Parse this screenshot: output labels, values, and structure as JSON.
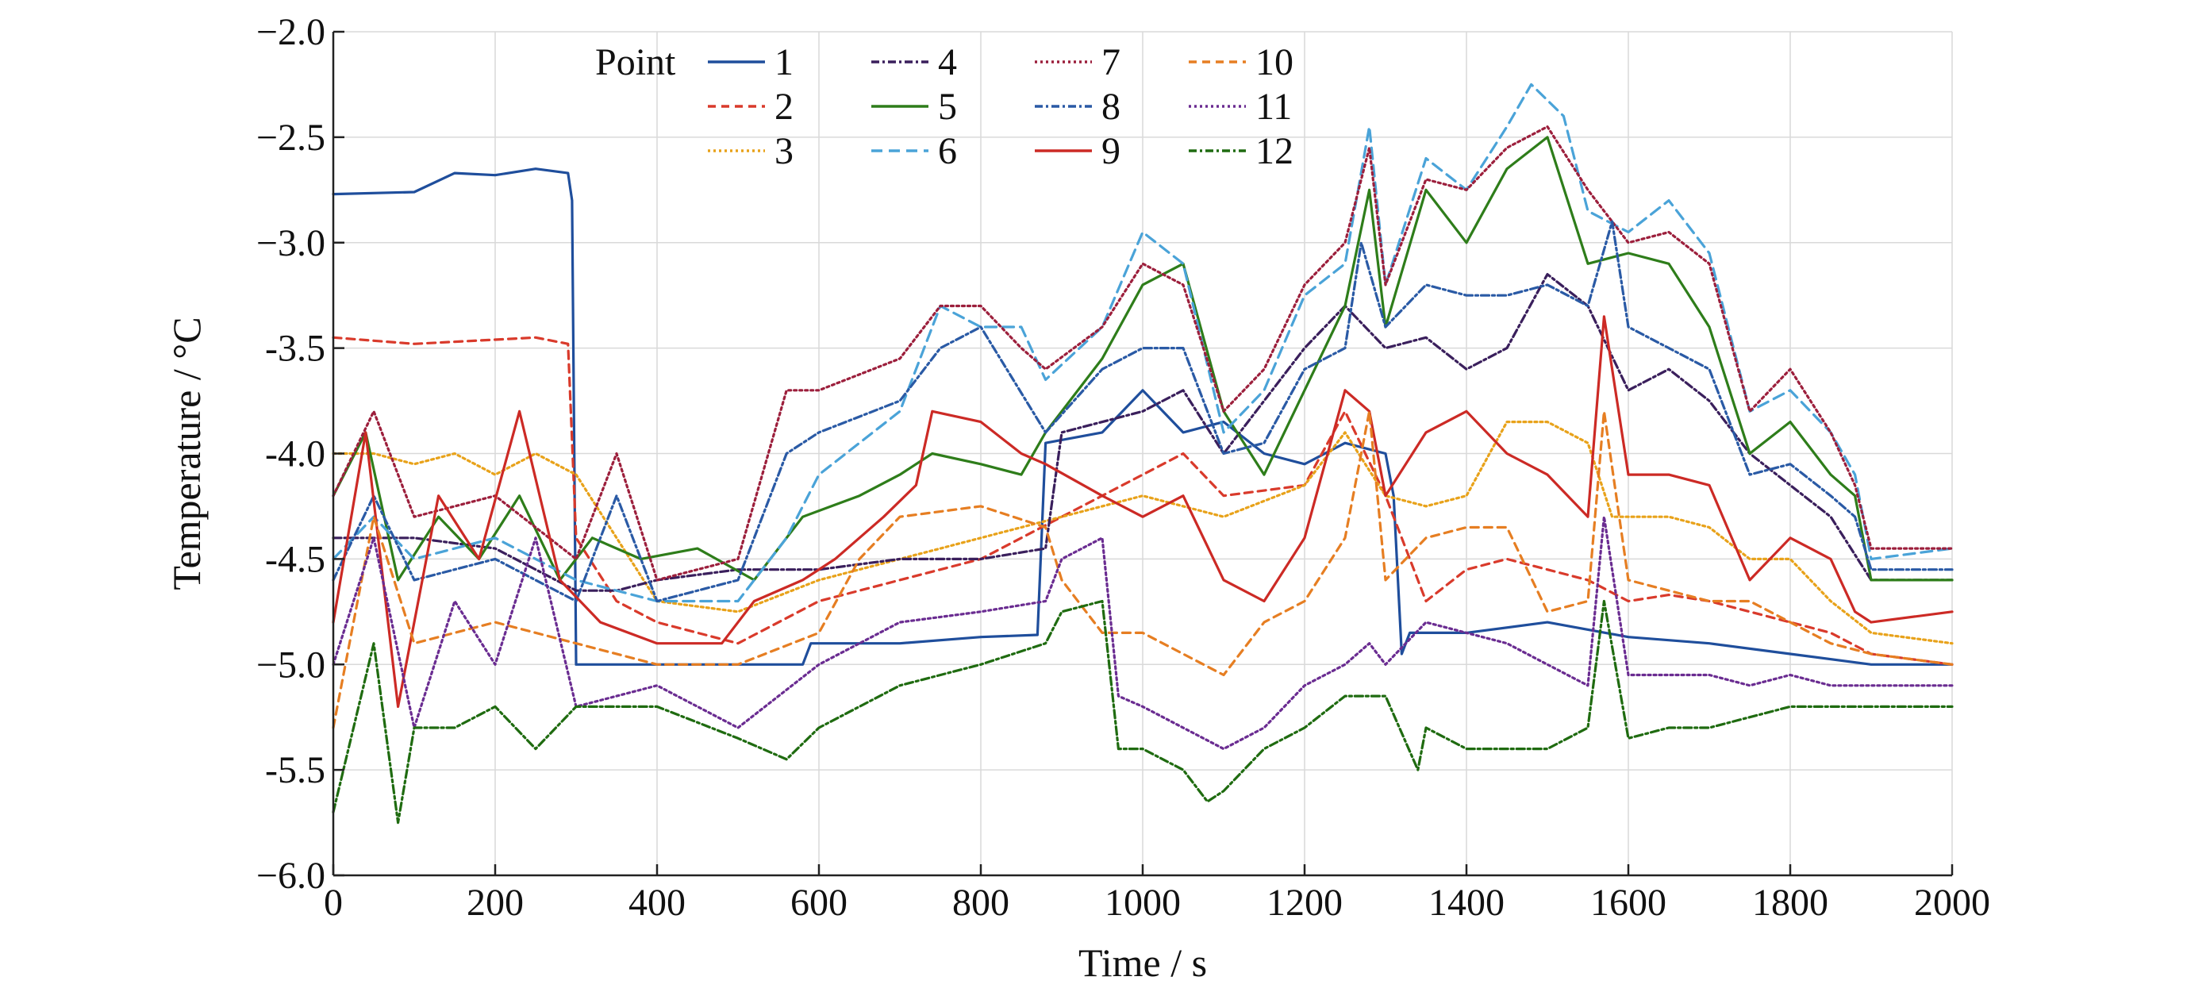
{
  "chart_data": {
    "type": "line",
    "xlabel": "Time / s",
    "ylabel": "Temperature / °C",
    "xlim": [
      0,
      2000
    ],
    "ylim": [
      -6.0,
      -2.0
    ],
    "xticks": [
      0,
      200,
      400,
      600,
      800,
      1000,
      1200,
      1400,
      1600,
      1800,
      2000
    ],
    "xtick_labels": [
      "0",
      "200",
      "400",
      "600",
      "800",
      "1000",
      "1200",
      "1400",
      "1600",
      "1800",
      "2000"
    ],
    "yticks": [
      -6.0,
      -5.5,
      -5.0,
      -4.5,
      -4.0,
      -3.5,
      -3.0,
      -2.5,
      -2.0
    ],
    "ytick_labels": [
      "−6.0",
      "-5.5",
      "−5.0",
      "-4.5",
      "-4.0",
      "-3.5",
      "−3.0",
      "−2.5",
      "−2.0"
    ],
    "grid": true,
    "legend": {
      "title": "Point",
      "placement": "top-left",
      "columns": 4
    },
    "series": [
      {
        "name": "1",
        "color": "#1f4e9c",
        "dash": "solid",
        "x": [
          0,
          100,
          150,
          200,
          250,
          290,
          295,
          300,
          350,
          450,
          500,
          580,
          590,
          700,
          800,
          870,
          880,
          950,
          1000,
          1050,
          1100,
          1150,
          1200,
          1250,
          1300,
          1310,
          1320,
          1330,
          1400,
          1500,
          1600,
          1700,
          1800,
          1900,
          2000
        ],
        "y": [
          -2.77,
          -2.76,
          -2.67,
          -2.68,
          -2.65,
          -2.67,
          -2.8,
          -5.0,
          -5.0,
          -5.0,
          -5.0,
          -5.0,
          -4.9,
          -4.9,
          -4.87,
          -4.86,
          -3.95,
          -3.9,
          -3.7,
          -3.9,
          -3.85,
          -4.0,
          -4.05,
          -3.95,
          -4.0,
          -4.2,
          -4.95,
          -4.85,
          -4.85,
          -4.8,
          -4.87,
          -4.9,
          -4.95,
          -5.0,
          -5.0
        ]
      },
      {
        "name": "2",
        "color": "#d93a2b",
        "dash": "10,7",
        "x": [
          0,
          100,
          200,
          250,
          290,
          300,
          350,
          400,
          500,
          600,
          700,
          800,
          900,
          1000,
          1050,
          1100,
          1200,
          1250,
          1300,
          1350,
          1400,
          1450,
          1500,
          1550,
          1600,
          1650,
          1700,
          1750,
          1800,
          1850,
          1900,
          2000
        ],
        "y": [
          -3.45,
          -3.48,
          -3.46,
          -3.45,
          -3.48,
          -4.4,
          -4.7,
          -4.8,
          -4.9,
          -4.7,
          -4.6,
          -4.5,
          -4.3,
          -4.1,
          -4.0,
          -4.2,
          -4.15,
          -3.8,
          -4.2,
          -4.7,
          -4.55,
          -4.5,
          -4.55,
          -4.6,
          -4.7,
          -4.67,
          -4.7,
          -4.75,
          -4.8,
          -4.85,
          -4.95,
          -5.0
        ]
      },
      {
        "name": "3",
        "color": "#e8a21a",
        "dash": "3,4",
        "x": [
          0,
          50,
          100,
          150,
          200,
          250,
          300,
          400,
          500,
          600,
          700,
          800,
          900,
          1000,
          1100,
          1200,
          1250,
          1300,
          1350,
          1400,
          1450,
          1500,
          1550,
          1580,
          1600,
          1650,
          1700,
          1750,
          1800,
          1850,
          1900,
          2000
        ],
        "y": [
          -4.0,
          -4.0,
          -4.05,
          -4.0,
          -4.1,
          -4.0,
          -4.1,
          -4.7,
          -4.75,
          -4.6,
          -4.5,
          -4.4,
          -4.3,
          -4.2,
          -4.3,
          -4.15,
          -3.9,
          -4.2,
          -4.25,
          -4.2,
          -3.85,
          -3.85,
          -3.95,
          -4.3,
          -4.3,
          -4.3,
          -4.35,
          -4.5,
          -4.5,
          -4.7,
          -4.85,
          -4.9
        ]
      },
      {
        "name": "4",
        "color": "#3a1f5c",
        "dash": "10,4,3,4",
        "x": [
          0,
          50,
          100,
          200,
          300,
          350,
          400,
          500,
          600,
          700,
          800,
          880,
          900,
          1000,
          1050,
          1100,
          1200,
          1250,
          1300,
          1350,
          1400,
          1450,
          1500,
          1550,
          1600,
          1650,
          1700,
          1750,
          1800,
          1850,
          1900,
          2000
        ],
        "y": [
          -4.4,
          -4.4,
          -4.4,
          -4.45,
          -4.65,
          -4.65,
          -4.6,
          -4.55,
          -4.55,
          -4.5,
          -4.5,
          -4.45,
          -3.9,
          -3.8,
          -3.7,
          -4.0,
          -3.5,
          -3.3,
          -3.5,
          -3.45,
          -3.6,
          -3.5,
          -3.15,
          -3.3,
          -3.7,
          -3.6,
          -3.75,
          -4.0,
          -4.15,
          -4.3,
          -4.6,
          -4.6
        ]
      },
      {
        "name": "5",
        "color": "#2e7d1a",
        "dash": "solid",
        "x": [
          0,
          40,
          80,
          130,
          180,
          230,
          280,
          320,
          380,
          450,
          520,
          580,
          650,
          700,
          740,
          800,
          850,
          880,
          950,
          1000,
          1050,
          1100,
          1150,
          1200,
          1250,
          1280,
          1300,
          1350,
          1400,
          1450,
          1500,
          1550,
          1600,
          1650,
          1700,
          1750,
          1800,
          1850,
          1880,
          1900,
          2000
        ],
        "y": [
          -4.2,
          -3.9,
          -4.6,
          -4.3,
          -4.5,
          -4.2,
          -4.6,
          -4.4,
          -4.5,
          -4.45,
          -4.6,
          -4.3,
          -4.2,
          -4.1,
          -4.0,
          -4.05,
          -4.1,
          -3.9,
          -3.55,
          -3.2,
          -3.1,
          -3.8,
          -4.1,
          -3.7,
          -3.3,
          -2.75,
          -3.4,
          -2.75,
          -3.0,
          -2.65,
          -2.5,
          -3.1,
          -3.05,
          -3.1,
          -3.4,
          -4.0,
          -3.85,
          -4.1,
          -4.2,
          -4.6,
          -4.6
        ]
      },
      {
        "name": "6",
        "color": "#4aa3d8",
        "dash": "14,8",
        "x": [
          0,
          50,
          100,
          200,
          300,
          400,
          500,
          560,
          600,
          700,
          750,
          800,
          850,
          880,
          950,
          1000,
          1050,
          1100,
          1150,
          1200,
          1250,
          1280,
          1300,
          1350,
          1400,
          1450,
          1480,
          1520,
          1550,
          1600,
          1650,
          1700,
          1750,
          1800,
          1850,
          1880,
          1900,
          2000
        ],
        "y": [
          -4.5,
          -4.3,
          -4.5,
          -4.4,
          -4.6,
          -4.7,
          -4.7,
          -4.4,
          -4.1,
          -3.8,
          -3.3,
          -3.4,
          -3.4,
          -3.65,
          -3.4,
          -2.95,
          -3.1,
          -3.9,
          -3.7,
          -3.25,
          -3.1,
          -2.45,
          -3.2,
          -2.6,
          -2.75,
          -2.45,
          -2.25,
          -2.4,
          -2.85,
          -2.95,
          -2.8,
          -3.05,
          -3.8,
          -3.7,
          -3.9,
          -4.1,
          -4.5,
          -4.45
        ]
      },
      {
        "name": "7",
        "color": "#9c1f3c",
        "dash": "3,4",
        "x": [
          0,
          50,
          100,
          200,
          300,
          350,
          400,
          500,
          560,
          600,
          700,
          750,
          800,
          850,
          880,
          950,
          1000,
          1050,
          1100,
          1150,
          1200,
          1250,
          1280,
          1300,
          1350,
          1400,
          1450,
          1500,
          1550,
          1600,
          1650,
          1700,
          1750,
          1800,
          1850,
          1880,
          1900,
          2000
        ],
        "y": [
          -4.2,
          -3.8,
          -4.3,
          -4.2,
          -4.5,
          -4.0,
          -4.6,
          -4.5,
          -3.7,
          -3.7,
          -3.55,
          -3.3,
          -3.3,
          -3.5,
          -3.6,
          -3.4,
          -3.1,
          -3.2,
          -3.8,
          -3.6,
          -3.2,
          -3.0,
          -2.55,
          -3.2,
          -2.7,
          -2.75,
          -2.55,
          -2.45,
          -2.75,
          -3.0,
          -2.95,
          -3.1,
          -3.8,
          -3.6,
          -3.9,
          -4.15,
          -4.45,
          -4.45
        ]
      },
      {
        "name": "8",
        "color": "#2a5aa5",
        "dash": "10,4,3,4",
        "x": [
          0,
          50,
          100,
          200,
          300,
          350,
          400,
          500,
          560,
          600,
          700,
          750,
          800,
          880,
          950,
          1000,
          1050,
          1100,
          1150,
          1200,
          1250,
          1270,
          1300,
          1350,
          1400,
          1450,
          1500,
          1550,
          1580,
          1600,
          1650,
          1700,
          1750,
          1800,
          1850,
          1880,
          1900,
          2000
        ],
        "y": [
          -4.6,
          -4.2,
          -4.6,
          -4.5,
          -4.7,
          -4.2,
          -4.7,
          -4.6,
          -4.0,
          -3.9,
          -3.75,
          -3.5,
          -3.4,
          -3.9,
          -3.6,
          -3.5,
          -3.5,
          -4.0,
          -3.95,
          -3.6,
          -3.5,
          -3.0,
          -3.4,
          -3.2,
          -3.25,
          -3.25,
          -3.2,
          -3.3,
          -2.9,
          -3.4,
          -3.5,
          -3.6,
          -4.1,
          -4.05,
          -4.2,
          -4.3,
          -4.55,
          -4.55
        ]
      },
      {
        "name": "9",
        "color": "#cc2a25",
        "dash": "solid",
        "x": [
          0,
          40,
          80,
          130,
          180,
          230,
          280,
          330,
          400,
          480,
          520,
          580,
          620,
          680,
          720,
          740,
          800,
          850,
          880,
          950,
          1000,
          1050,
          1100,
          1150,
          1200,
          1250,
          1280,
          1300,
          1350,
          1400,
          1450,
          1500,
          1550,
          1570,
          1600,
          1650,
          1700,
          1750,
          1800,
          1850,
          1880,
          1900,
          2000
        ],
        "y": [
          -4.8,
          -3.9,
          -5.2,
          -4.2,
          -4.5,
          -3.8,
          -4.6,
          -4.8,
          -4.9,
          -4.9,
          -4.7,
          -4.6,
          -4.5,
          -4.3,
          -4.15,
          -3.8,
          -3.85,
          -4.0,
          -4.05,
          -4.2,
          -4.3,
          -4.2,
          -4.6,
          -4.7,
          -4.4,
          -3.7,
          -3.8,
          -4.2,
          -3.9,
          -3.8,
          -4.0,
          -4.1,
          -4.3,
          -3.35,
          -4.1,
          -4.1,
          -4.15,
          -4.6,
          -4.4,
          -4.5,
          -4.75,
          -4.8,
          -4.75
        ]
      },
      {
        "name": "10",
        "color": "#e67e22",
        "dash": "10,7",
        "x": [
          0,
          50,
          100,
          200,
          300,
          400,
          500,
          600,
          650,
          700,
          800,
          880,
          900,
          950,
          1000,
          1050,
          1100,
          1150,
          1200,
          1250,
          1280,
          1300,
          1350,
          1400,
          1450,
          1500,
          1550,
          1570,
          1600,
          1650,
          1700,
          1750,
          1800,
          1850,
          1900,
          2000
        ],
        "y": [
          -5.3,
          -4.3,
          -4.9,
          -4.8,
          -4.9,
          -5.0,
          -5.0,
          -4.85,
          -4.5,
          -4.3,
          -4.25,
          -4.35,
          -4.6,
          -4.85,
          -4.85,
          -4.95,
          -5.05,
          -4.8,
          -4.7,
          -4.4,
          -3.8,
          -4.6,
          -4.4,
          -4.35,
          -4.35,
          -4.75,
          -4.7,
          -3.8,
          -4.6,
          -4.65,
          -4.7,
          -4.7,
          -4.8,
          -4.9,
          -4.95,
          -5.0
        ]
      },
      {
        "name": "11",
        "color": "#6a2c91",
        "dash": "3,4",
        "x": [
          0,
          50,
          100,
          150,
          200,
          250,
          300,
          400,
          500,
          600,
          700,
          800,
          880,
          900,
          950,
          970,
          1000,
          1050,
          1100,
          1150,
          1200,
          1250,
          1280,
          1300,
          1350,
          1400,
          1450,
          1500,
          1550,
          1570,
          1600,
          1650,
          1700,
          1750,
          1800,
          1850,
          1900,
          2000
        ],
        "y": [
          -5.0,
          -4.4,
          -5.3,
          -4.7,
          -5.0,
          -4.4,
          -5.2,
          -5.1,
          -5.3,
          -5.0,
          -4.8,
          -4.75,
          -4.7,
          -4.5,
          -4.4,
          -5.15,
          -5.2,
          -5.3,
          -5.4,
          -5.3,
          -5.1,
          -5.0,
          -4.9,
          -5.0,
          -4.8,
          -4.85,
          -4.9,
          -5.0,
          -5.1,
          -4.3,
          -5.05,
          -5.05,
          -5.05,
          -5.1,
          -5.05,
          -5.1,
          -5.1,
          -5.1
        ]
      },
      {
        "name": "12",
        "color": "#1f6b10",
        "dash": "10,4,3,4",
        "x": [
          0,
          50,
          80,
          100,
          150,
          200,
          250,
          300,
          400,
          500,
          560,
          600,
          650,
          700,
          800,
          880,
          900,
          950,
          970,
          1000,
          1050,
          1080,
          1100,
          1150,
          1200,
          1250,
          1300,
          1340,
          1350,
          1400,
          1450,
          1500,
          1550,
          1570,
          1600,
          1650,
          1700,
          1750,
          1800,
          1850,
          1900,
          2000
        ],
        "y": [
          -5.7,
          -4.9,
          -5.75,
          -5.3,
          -5.3,
          -5.2,
          -5.4,
          -5.2,
          -5.2,
          -5.35,
          -5.45,
          -5.3,
          -5.2,
          -5.1,
          -5.0,
          -4.9,
          -4.75,
          -4.7,
          -5.4,
          -5.4,
          -5.5,
          -5.65,
          -5.6,
          -5.4,
          -5.3,
          -5.15,
          -5.15,
          -5.5,
          -5.3,
          -5.4,
          -5.4,
          -5.4,
          -5.3,
          -4.7,
          -5.35,
          -5.3,
          -5.3,
          -5.25,
          -5.2,
          -5.2,
          -5.2,
          -5.2
        ]
      }
    ]
  }
}
